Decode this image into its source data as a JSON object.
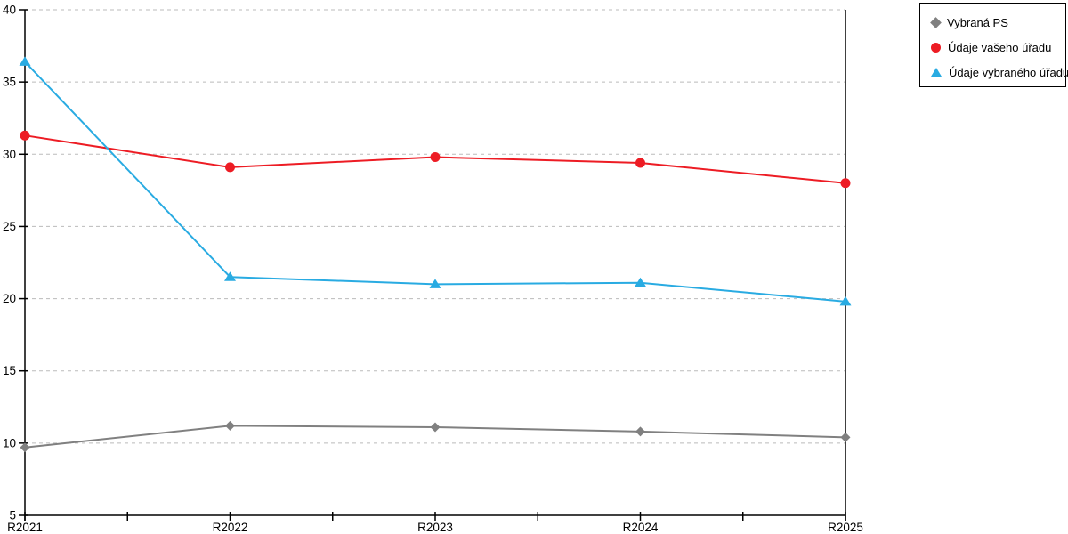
{
  "chart_data": {
    "type": "line",
    "title": "",
    "xlabel": "",
    "ylabel": "",
    "categories": [
      "R2021",
      "R2022",
      "R2023",
      "R2024",
      "R2025"
    ],
    "series": [
      {
        "name": "Vybraná PS",
        "marker": "diamond",
        "color": "#808080",
        "values": [
          9.7,
          11.2,
          11.1,
          10.8,
          10.4
        ]
      },
      {
        "name": "Údaje vašeho úřadu",
        "marker": "circle",
        "color": "#ed1c24",
        "values": [
          31.3,
          29.1,
          29.8,
          29.4,
          28.0
        ]
      },
      {
        "name": "Údaje vybraného úřadu",
        "marker": "triangle",
        "color": "#29abe2",
        "values": [
          36.4,
          21.5,
          21.0,
          21.1,
          19.8
        ]
      }
    ],
    "ylim": [
      5,
      40
    ],
    "yticks": [
      5,
      10,
      15,
      20,
      25,
      30,
      35,
      40
    ],
    "x_minor_ticks_between_categories": true,
    "grid": "horizontal-dashed",
    "legend_position": "top-right",
    "colors": {
      "axis": "#000000",
      "grid": "#bbbbbb",
      "text": "#000000",
      "background": "#ffffff"
    }
  }
}
